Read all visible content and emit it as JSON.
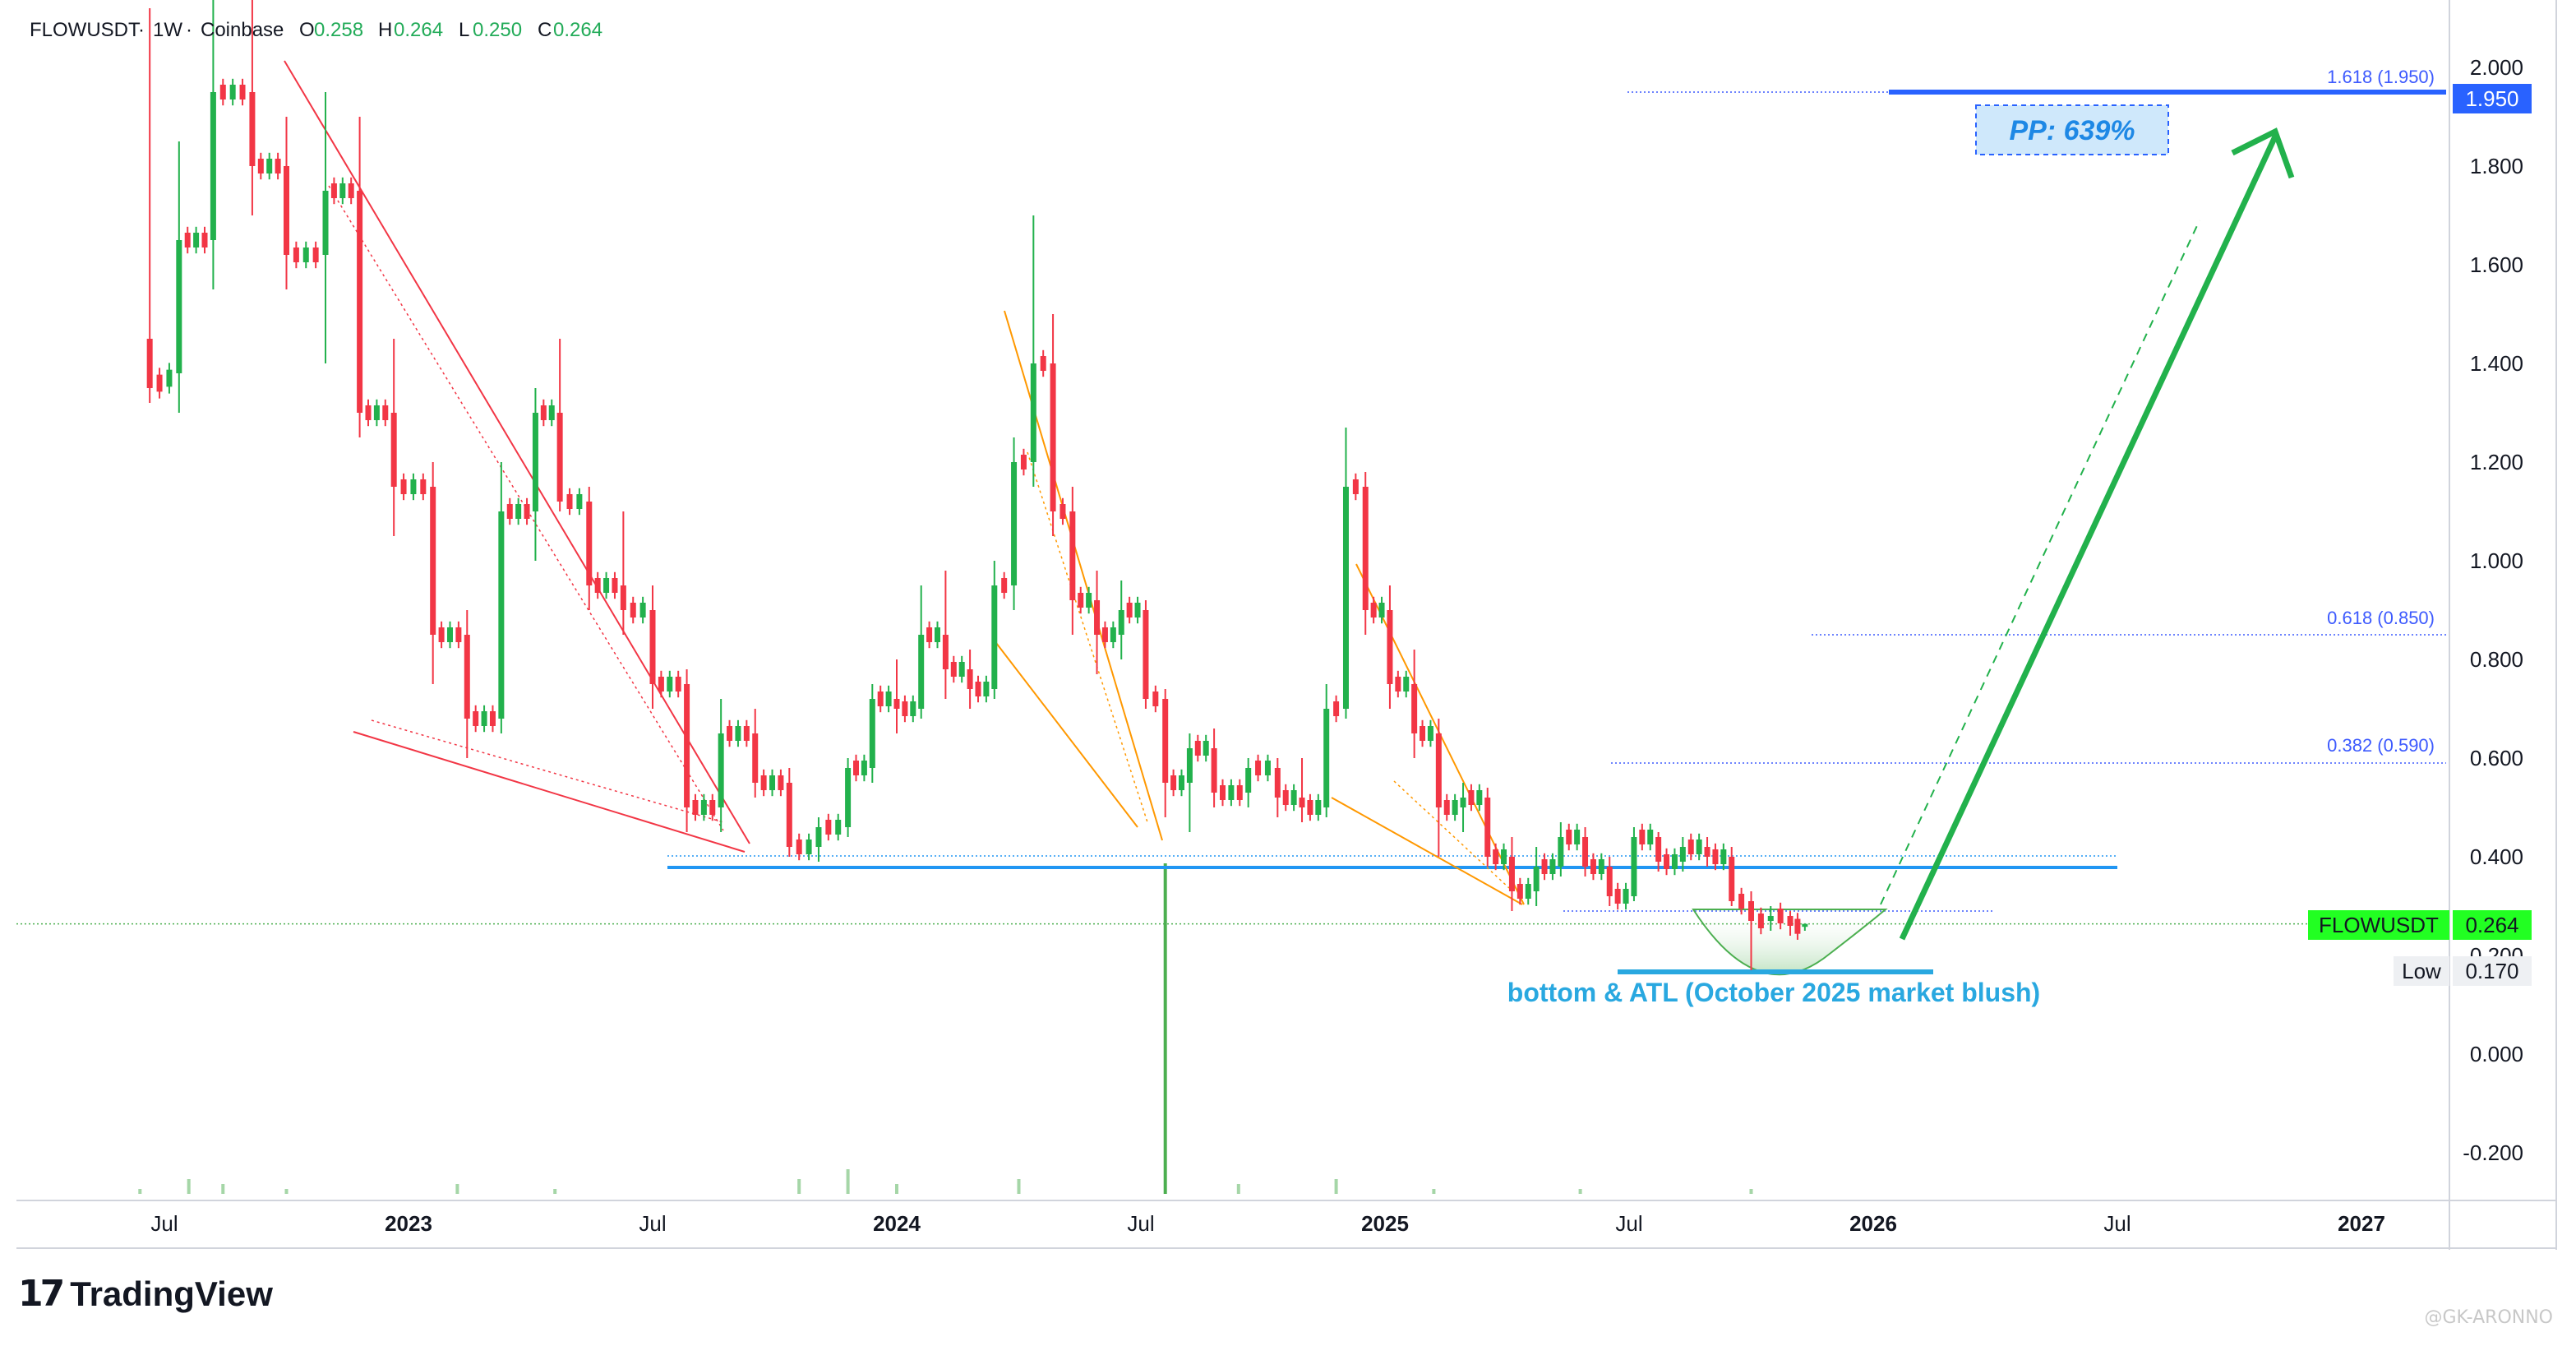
{
  "header": {
    "symbol": "FLOWUSDT",
    "interval": "1W",
    "exchange": "Coinbase",
    "ohlc": {
      "o_label": "O",
      "o": "0.258",
      "h_label": "H",
      "h": "0.264",
      "l_label": "L",
      "l": "0.250",
      "c_label": "C",
      "c": "0.264"
    }
  },
  "branding": {
    "logo_mark": "17",
    "logo_text": "TradingView",
    "watermark": "@GK-ARONNO"
  },
  "colors": {
    "up": "#26a69a",
    "up_bright": "#22b14c",
    "down": "#f23645",
    "support": "#2196f3",
    "target": "#2962ff",
    "arrow": "#22b14c",
    "wedge_red": "#f23645",
    "wedge_orange": "#ff9800",
    "fib": "#3d5afe",
    "price_tag": "#22ff22"
  },
  "annotations": {
    "pp_label": "PP: 639%",
    "bottom_label": "bottom & ATL (October 2025 market blush)",
    "fib_1618": "1.618 (1.950)",
    "fib_0618": "0.618 (0.850)",
    "fib_0382": "0.382 (0.590)"
  },
  "price_scale": {
    "tag_symbol": "FLOWUSDT",
    "tag_price": "0.264",
    "target_price": "1.950",
    "low_label": "Low",
    "low_price": "0.170"
  },
  "chart_data": {
    "type": "candlestick",
    "title": "FLOWUSDT · 1W · Coinbase",
    "ylim": [
      -0.27,
      2.13
    ],
    "y_ticks": [
      "2.000",
      "1.800",
      "1.600",
      "1.400",
      "1.200",
      "1.000",
      "0.800",
      "0.600",
      "0.400",
      "0.200",
      "0.000",
      "-0.200"
    ],
    "x_ticks": [
      {
        "label": "Jul",
        "t": 2022.5,
        "bold": false
      },
      {
        "label": "2023",
        "t": 2023.0,
        "bold": true
      },
      {
        "label": "Jul",
        "t": 2023.5,
        "bold": false
      },
      {
        "label": "2024",
        "t": 2024.0,
        "bold": true
      },
      {
        "label": "Jul",
        "t": 2024.5,
        "bold": false
      },
      {
        "label": "2025",
        "t": 2025.0,
        "bold": true
      },
      {
        "label": "Jul",
        "t": 2025.5,
        "bold": false
      },
      {
        "label": "2026",
        "t": 2026.0,
        "bold": true
      },
      {
        "label": "Jul",
        "t": 2026.5,
        "bold": false
      },
      {
        "label": "2027",
        "t": 2027.0,
        "bold": true
      }
    ],
    "x_range": [
      2022.2,
      2027.05
    ],
    "last_close": 0.264,
    "low": 0.17,
    "support_level": 0.395,
    "fib_levels": [
      {
        "ratio": "1.618",
        "price": 1.95
      },
      {
        "ratio": "0.618",
        "price": 0.85
      },
      {
        "ratio": "0.382",
        "price": 0.59
      }
    ],
    "candles": [
      {
        "t": 2022.47,
        "o": 1.45,
        "h": 2.12,
        "l": 1.32,
        "c": 1.35
      },
      {
        "t": 2022.53,
        "o": 1.38,
        "h": 1.85,
        "l": 1.3,
        "c": 1.65
      },
      {
        "t": 2022.6,
        "o": 1.65,
        "h": 2.2,
        "l": 1.55,
        "c": 1.95
      },
      {
        "t": 2022.68,
        "o": 1.95,
        "h": 2.2,
        "l": 1.7,
        "c": 1.8
      },
      {
        "t": 2022.75,
        "o": 1.8,
        "h": 1.9,
        "l": 1.55,
        "c": 1.62
      },
      {
        "t": 2022.83,
        "o": 1.62,
        "h": 1.95,
        "l": 1.4,
        "c": 1.75
      },
      {
        "t": 2022.9,
        "o": 1.75,
        "h": 1.9,
        "l": 1.25,
        "c": 1.3
      },
      {
        "t": 2022.97,
        "o": 1.3,
        "h": 1.45,
        "l": 1.05,
        "c": 1.15
      },
      {
        "t": 2023.05,
        "o": 1.15,
        "h": 1.2,
        "l": 0.75,
        "c": 0.85
      },
      {
        "t": 2023.12,
        "o": 0.85,
        "h": 0.9,
        "l": 0.6,
        "c": 0.68
      },
      {
        "t": 2023.19,
        "o": 0.68,
        "h": 1.2,
        "l": 0.65,
        "c": 1.1
      },
      {
        "t": 2023.26,
        "o": 1.1,
        "h": 1.35,
        "l": 1.0,
        "c": 1.3
      },
      {
        "t": 2023.31,
        "o": 1.3,
        "h": 1.45,
        "l": 1.1,
        "c": 1.12
      },
      {
        "t": 2023.37,
        "o": 1.12,
        "h": 1.15,
        "l": 0.9,
        "c": 0.95
      },
      {
        "t": 2023.44,
        "o": 0.95,
        "h": 1.1,
        "l": 0.85,
        "c": 0.9
      },
      {
        "t": 2023.5,
        "o": 0.9,
        "h": 0.95,
        "l": 0.7,
        "c": 0.75
      },
      {
        "t": 2023.57,
        "o": 0.75,
        "h": 0.78,
        "l": 0.45,
        "c": 0.5
      },
      {
        "t": 2023.64,
        "o": 0.5,
        "h": 0.72,
        "l": 0.45,
        "c": 0.65
      },
      {
        "t": 2023.71,
        "o": 0.65,
        "h": 0.7,
        "l": 0.52,
        "c": 0.55
      },
      {
        "t": 2023.78,
        "o": 0.55,
        "h": 0.58,
        "l": 0.4,
        "c": 0.42
      },
      {
        "t": 2023.84,
        "o": 0.42,
        "h": 0.48,
        "l": 0.39,
        "c": 0.46
      },
      {
        "t": 2023.9,
        "o": 0.46,
        "h": 0.6,
        "l": 0.44,
        "c": 0.58
      },
      {
        "t": 2023.95,
        "o": 0.58,
        "h": 0.75,
        "l": 0.55,
        "c": 0.72
      },
      {
        "t": 2024.0,
        "o": 0.72,
        "h": 0.8,
        "l": 0.65,
        "c": 0.7
      },
      {
        "t": 2024.05,
        "o": 0.7,
        "h": 0.95,
        "l": 0.68,
        "c": 0.85
      },
      {
        "t": 2024.1,
        "o": 0.85,
        "h": 0.98,
        "l": 0.72,
        "c": 0.78
      },
      {
        "t": 2024.15,
        "o": 0.78,
        "h": 0.82,
        "l": 0.7,
        "c": 0.74
      },
      {
        "t": 2024.2,
        "o": 0.74,
        "h": 1.0,
        "l": 0.72,
        "c": 0.95
      },
      {
        "t": 2024.24,
        "o": 0.95,
        "h": 1.25,
        "l": 0.9,
        "c": 1.2
      },
      {
        "t": 2024.28,
        "o": 1.2,
        "h": 1.7,
        "l": 1.15,
        "c": 1.4
      },
      {
        "t": 2024.32,
        "o": 1.4,
        "h": 1.5,
        "l": 1.05,
        "c": 1.1
      },
      {
        "t": 2024.36,
        "o": 1.1,
        "h": 1.15,
        "l": 0.85,
        "c": 0.92
      },
      {
        "t": 2024.41,
        "o": 0.92,
        "h": 0.98,
        "l": 0.77,
        "c": 0.85
      },
      {
        "t": 2024.46,
        "o": 0.85,
        "h": 0.96,
        "l": 0.8,
        "c": 0.9
      },
      {
        "t": 2024.51,
        "o": 0.9,
        "h": 0.92,
        "l": 0.7,
        "c": 0.72
      },
      {
        "t": 2024.55,
        "o": 0.72,
        "h": 0.74,
        "l": 0.48,
        "c": 0.55
      },
      {
        "t": 2024.6,
        "o": 0.55,
        "h": 0.65,
        "l": 0.45,
        "c": 0.62
      },
      {
        "t": 2024.65,
        "o": 0.62,
        "h": 0.66,
        "l": 0.5,
        "c": 0.53
      },
      {
        "t": 2024.72,
        "o": 0.53,
        "h": 0.6,
        "l": 0.5,
        "c": 0.58
      },
      {
        "t": 2024.78,
        "o": 0.58,
        "h": 0.6,
        "l": 0.48,
        "c": 0.52
      },
      {
        "t": 2024.83,
        "o": 0.52,
        "h": 0.6,
        "l": 0.47,
        "c": 0.5
      },
      {
        "t": 2024.88,
        "o": 0.5,
        "h": 0.75,
        "l": 0.48,
        "c": 0.7
      },
      {
        "t": 2024.92,
        "o": 0.7,
        "h": 1.27,
        "l": 0.68,
        "c": 1.15
      },
      {
        "t": 2024.96,
        "o": 1.15,
        "h": 1.18,
        "l": 0.85,
        "c": 0.9
      },
      {
        "t": 2025.01,
        "o": 0.9,
        "h": 0.95,
        "l": 0.7,
        "c": 0.75
      },
      {
        "t": 2025.06,
        "o": 0.75,
        "h": 0.82,
        "l": 0.6,
        "c": 0.65
      },
      {
        "t": 2025.11,
        "o": 0.65,
        "h": 0.68,
        "l": 0.4,
        "c": 0.5
      },
      {
        "t": 2025.16,
        "o": 0.5,
        "h": 0.55,
        "l": 0.45,
        "c": 0.52
      },
      {
        "t": 2025.21,
        "o": 0.52,
        "h": 0.54,
        "l": 0.38,
        "c": 0.4
      },
      {
        "t": 2025.26,
        "o": 0.4,
        "h": 0.44,
        "l": 0.29,
        "c": 0.33
      },
      {
        "t": 2025.31,
        "o": 0.33,
        "h": 0.42,
        "l": 0.3,
        "c": 0.38
      },
      {
        "t": 2025.36,
        "o": 0.38,
        "h": 0.47,
        "l": 0.36,
        "c": 0.44
      },
      {
        "t": 2025.41,
        "o": 0.44,
        "h": 0.46,
        "l": 0.36,
        "c": 0.38
      },
      {
        "t": 2025.46,
        "o": 0.38,
        "h": 0.4,
        "l": 0.3,
        "c": 0.32
      },
      {
        "t": 2025.51,
        "o": 0.32,
        "h": 0.46,
        "l": 0.31,
        "c": 0.44
      },
      {
        "t": 2025.56,
        "o": 0.44,
        "h": 0.45,
        "l": 0.37,
        "c": 0.39
      },
      {
        "t": 2025.61,
        "o": 0.39,
        "h": 0.44,
        "l": 0.37,
        "c": 0.42
      },
      {
        "t": 2025.66,
        "o": 0.42,
        "h": 0.44,
        "l": 0.38,
        "c": 0.4
      },
      {
        "t": 2025.71,
        "o": 0.4,
        "h": 0.42,
        "l": 0.3,
        "c": 0.31
      },
      {
        "t": 2025.75,
        "o": 0.31,
        "h": 0.33,
        "l": 0.17,
        "c": 0.27
      },
      {
        "t": 2025.79,
        "o": 0.27,
        "h": 0.3,
        "l": 0.25,
        "c": 0.28
      },
      {
        "t": 2025.83,
        "o": 0.28,
        "h": 0.29,
        "l": 0.24,
        "c": 0.26
      },
      {
        "t": 2025.86,
        "o": 0.258,
        "h": 0.264,
        "l": 0.25,
        "c": 0.264
      }
    ],
    "volume": [
      {
        "t": 2022.45,
        "v": 1
      },
      {
        "t": 2022.55,
        "v": 3
      },
      {
        "t": 2022.62,
        "v": 2
      },
      {
        "t": 2022.75,
        "v": 1
      },
      {
        "t": 2023.1,
        "v": 2
      },
      {
        "t": 2023.3,
        "v": 1
      },
      {
        "t": 2023.8,
        "v": 3
      },
      {
        "t": 2023.9,
        "v": 5
      },
      {
        "t": 2024.0,
        "v": 2
      },
      {
        "t": 2024.25,
        "v": 3
      },
      {
        "t": 2024.55,
        "v": 60
      },
      {
        "t": 2024.7,
        "v": 2
      },
      {
        "t": 2024.9,
        "v": 3
      },
      {
        "t": 2025.1,
        "v": 1
      },
      {
        "t": 2025.4,
        "v": 1
      },
      {
        "t": 2025.75,
        "v": 1
      }
    ]
  }
}
